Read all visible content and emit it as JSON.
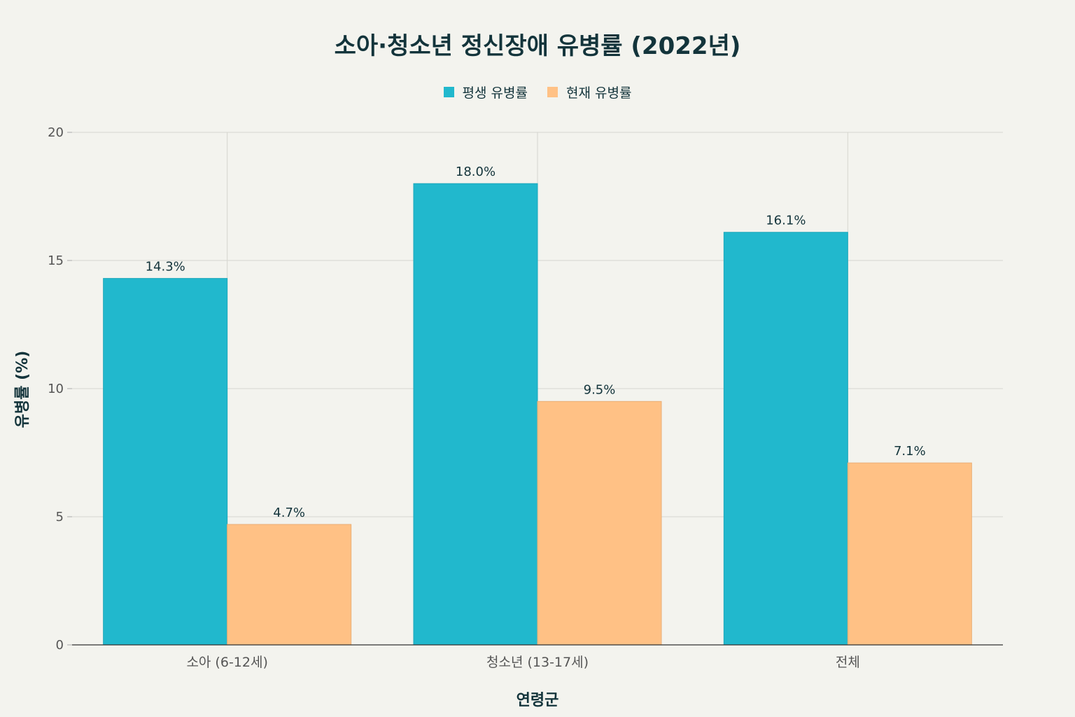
{
  "chart_data": {
    "type": "bar",
    "title": "소아·청소년 정신장애 유병률 (2022년)",
    "xlabel": "연령군",
    "ylabel": "유병률 (%)",
    "ylim": [
      0,
      20
    ],
    "yticks": [
      0,
      5,
      10,
      15,
      20
    ],
    "categories": [
      "소아 (6-12세)",
      "청소년 (13-17세)",
      "전체"
    ],
    "series": [
      {
        "name": "평생 유병률",
        "values": [
          14.3,
          18.0,
          16.1
        ],
        "labels": [
          "14.3%",
          "18.0%",
          "16.1%"
        ],
        "color": "#21b8cd"
      },
      {
        "name": "현재 유병률",
        "values": [
          4.7,
          9.5,
          7.1
        ],
        "labels": [
          "4.7%",
          "9.5%",
          "7.1%"
        ],
        "color": "#ffc185"
      }
    ],
    "grid": true,
    "legend": "top-center"
  }
}
